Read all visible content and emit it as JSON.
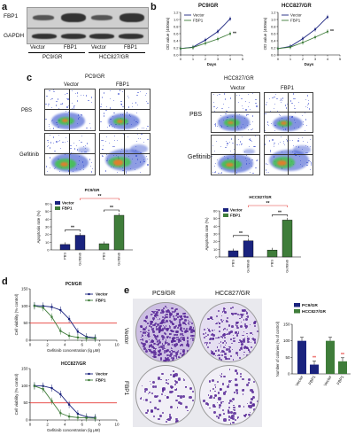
{
  "panel_labels": {
    "a": "a",
    "b": "b",
    "c": "c",
    "d": "d",
    "e": "e"
  },
  "panel_a": {
    "proteins": [
      "FBP1",
      "GAPDH"
    ],
    "lanes": [
      "Vector",
      "FBP1",
      "Vector",
      "FBP1"
    ],
    "groups": [
      "PC9/GR",
      "HCC827/GR"
    ]
  },
  "panel_b": {
    "titles": [
      "PC9/GR",
      "HCC827/GR"
    ],
    "ylabel": "OD value (450nm)",
    "xlabel": "Days",
    "legend": [
      "Vector",
      "FBP1"
    ],
    "sig": "**"
  },
  "panel_c": {
    "pc9": {
      "title": "PC9/GR",
      "col_labels": [
        "Vector",
        "FBP1"
      ],
      "row_labels": [
        "PBS",
        "Gefitinib"
      ],
      "bar_title": "PC9/GR",
      "legend": [
        "Vector",
        "FBP1"
      ],
      "ylabel": "Apoptosis rate (%)",
      "xticks": [
        "PBS",
        "Gefitinib",
        "PBS",
        "Gefitinib"
      ],
      "sig": "**"
    },
    "hcc": {
      "title": "HCC827/GR",
      "col_labels": [
        "Vector",
        "FBP1"
      ],
      "row_labels": [
        "PBS",
        "Gefitinib"
      ],
      "bar_title": "HCC827/GR",
      "legend": [
        "Vector",
        "FBP1"
      ],
      "ylabel": "Apoptosis rate (%)",
      "xticks": [
        "PBS",
        "Gefitinib",
        "PBS",
        "Gefitinib"
      ],
      "sig": "**"
    }
  },
  "panel_d": {
    "titles": [
      "PC9/GR",
      "HCC827/GR"
    ],
    "ylabel": "Cell viability (% control)",
    "xlabel": "Gefitinib concentration (lg μM)",
    "legend": [
      "Vector",
      "FBP1"
    ]
  },
  "panel_e": {
    "col_labels": [
      "PC9/GR",
      "HCC827/GR"
    ],
    "row_labels": [
      "Vector",
      "FBP1"
    ],
    "legend": [
      "PC9/GR",
      "HCC827/GR"
    ],
    "ylabel": "Number of colonies (% of control)",
    "xticks": [
      "Vector",
      "FBP1",
      "Vector",
      "FBP1"
    ],
    "sig": "**"
  },
  "chart_data": [
    {
      "type": "line",
      "id": "b1",
      "title": "PC9/GR",
      "xlabel": "Days",
      "ylabel": "OD value (450nm)",
      "x": [
        0,
        1,
        2,
        3,
        4
      ],
      "xlim": [
        0,
        5
      ],
      "ylim": [
        0,
        1.2
      ],
      "yticks": [
        0.0,
        0.2,
        0.4,
        0.6,
        0.8,
        1.0,
        1.2
      ],
      "series": [
        {
          "name": "Vector",
          "values": [
            0.18,
            0.22,
            0.42,
            0.66,
            1.02
          ]
        },
        {
          "name": "FBP1",
          "values": [
            0.18,
            0.21,
            0.33,
            0.45,
            0.6
          ]
        }
      ]
    },
    {
      "type": "line",
      "id": "b2",
      "title": "HCC827/GR",
      "xlabel": "Days",
      "ylabel": "OD value (450nm)",
      "x": [
        0,
        1,
        2,
        3,
        4
      ],
      "xlim": [
        0,
        5
      ],
      "ylim": [
        0,
        1.2
      ],
      "yticks": [
        0.0,
        0.2,
        0.4,
        0.6,
        0.8,
        1.0,
        1.2
      ],
      "series": [
        {
          "name": "Vector",
          "values": [
            0.18,
            0.24,
            0.46,
            0.72,
            1.07
          ]
        },
        {
          "name": "FBP1",
          "values": [
            0.18,
            0.22,
            0.35,
            0.5,
            0.66
          ]
        }
      ]
    },
    {
      "type": "bar",
      "id": "c1",
      "title": "PC9/GR",
      "ylabel": "Apoptosis rate (%)",
      "categories": [
        "PBS",
        "Gefitinib",
        "PBS",
        "Gefitinib"
      ],
      "ylim": [
        0,
        60
      ],
      "yticks": [
        0,
        10,
        20,
        30,
        40,
        50,
        60
      ],
      "values": [
        7,
        19,
        8,
        45
      ],
      "series_of_bar": [
        "Vector",
        "Vector",
        "FBP1",
        "FBP1"
      ]
    },
    {
      "type": "bar",
      "id": "c2",
      "title": "HCC827/GR",
      "ylabel": "Apoptosis rate (%)",
      "categories": [
        "PBS",
        "Gefitinib",
        "PBS",
        "Gefitinib"
      ],
      "ylim": [
        0,
        60
      ],
      "yticks": [
        0,
        10,
        20,
        30,
        40,
        50,
        60
      ],
      "values": [
        8,
        21,
        9,
        48
      ],
      "series_of_bar": [
        "Vector",
        "Vector",
        "FBP1",
        "FBP1"
      ]
    },
    {
      "type": "line",
      "id": "d1",
      "title": "PC9/GR",
      "xlabel": "Gefitinib concentration (lg μM)",
      "ylabel": "Cell viability (% control)",
      "xlim": [
        0,
        10
      ],
      "ylim": [
        0,
        150
      ],
      "yticks": [
        0,
        50,
        100,
        150
      ],
      "xticks": [
        0,
        2,
        4,
        6,
        8,
        10
      ],
      "x": [
        0.5,
        1.5,
        2.5,
        3.5,
        4.5,
        5.5,
        6.5,
        7.5
      ],
      "series": [
        {
          "name": "Vector",
          "values": [
            101,
            100,
            97,
            88,
            62,
            25,
            10,
            7
          ]
        },
        {
          "name": "FBP1",
          "values": [
            100,
            95,
            68,
            27,
            13,
            8,
            6,
            5
          ]
        }
      ],
      "reference_line": 50
    },
    {
      "type": "line",
      "id": "d2",
      "title": "HCC827/GR",
      "xlabel": "Gefitinib concentration (lg μM)",
      "ylabel": "Cell viability (% control)",
      "xlim": [
        0,
        10
      ],
      "ylim": [
        0,
        150
      ],
      "yticks": [
        0,
        50,
        100,
        150
      ],
      "xticks": [
        0,
        2,
        4,
        6,
        8,
        10
      ],
      "x": [
        0.5,
        1.5,
        2.5,
        3.5,
        4.5,
        5.5,
        6.5,
        7.5
      ],
      "series": [
        {
          "name": "Vector",
          "values": [
            100,
            99,
            93,
            75,
            45,
            18,
            9,
            7
          ]
        },
        {
          "name": "FBP1",
          "values": [
            99,
            90,
            55,
            20,
            10,
            7,
            6,
            5
          ]
        }
      ],
      "reference_line": 50
    },
    {
      "type": "bar",
      "id": "e",
      "ylabel": "Number of colonies (% of control)",
      "categories": [
        "Vector",
        "FBP1",
        "Vector",
        "FBP1"
      ],
      "ylim": [
        0,
        150
      ],
      "yticks": [
        0,
        50,
        100,
        150
      ],
      "values": [
        100,
        28,
        100,
        38
      ],
      "series_of_bar": [
        "PC9/GR",
        "PC9/GR",
        "HCC827/GR",
        "HCC827/GR"
      ]
    }
  ],
  "colors": {
    "vector": "#1a237e",
    "fbp1": "#3f7d3a",
    "red": "#e53935",
    "gr_pc9": "#1a237e",
    "gr_hcc": "#3f7d3a"
  }
}
